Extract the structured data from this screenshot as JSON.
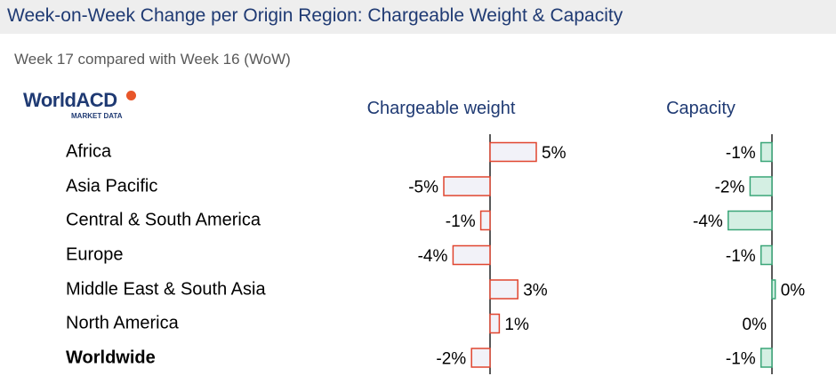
{
  "title": "Week-on-Week Change per Origin Region: Chargeable Weight & Capacity",
  "subtitle": "Week 17 compared with Week 16 (WoW)",
  "logo": {
    "name": "WorldACD",
    "tagline": "MARKET DATA"
  },
  "colors": {
    "title": "#1f3a73",
    "chargeable_weight_bar_fill": "#f2f2f8",
    "chargeable_weight_bar_border": "#e0452f",
    "capacity_bar_fill": "#d4efe3",
    "capacity_bar_border": "#3aa678"
  },
  "chart_data": [
    {
      "type": "bar",
      "orientation": "horizontal",
      "title": "Chargeable weight",
      "unit": "%",
      "categories": [
        "Africa",
        "Asia Pacific",
        "Central & South America",
        "Europe",
        "Middle East & South Asia",
        "North America",
        "Worldwide"
      ],
      "values": [
        5,
        -5,
        -1,
        -4,
        3,
        1,
        -2
      ],
      "labels": [
        "5%",
        "-5%",
        "-1%",
        "-4%",
        "3%",
        "1%",
        "-2%"
      ],
      "grid": false
    },
    {
      "type": "bar",
      "orientation": "horizontal",
      "title": "Capacity",
      "unit": "%",
      "categories": [
        "Africa",
        "Asia Pacific",
        "Central & South America",
        "Europe",
        "Middle East & South Asia",
        "North America",
        "Worldwide"
      ],
      "values": [
        -1,
        -2,
        -4,
        -1,
        0.3,
        0,
        -1
      ],
      "labels": [
        "-1%",
        "-2%",
        "-4%",
        "-1%",
        "0%",
        "0%",
        "-1%"
      ],
      "grid": false
    }
  ]
}
